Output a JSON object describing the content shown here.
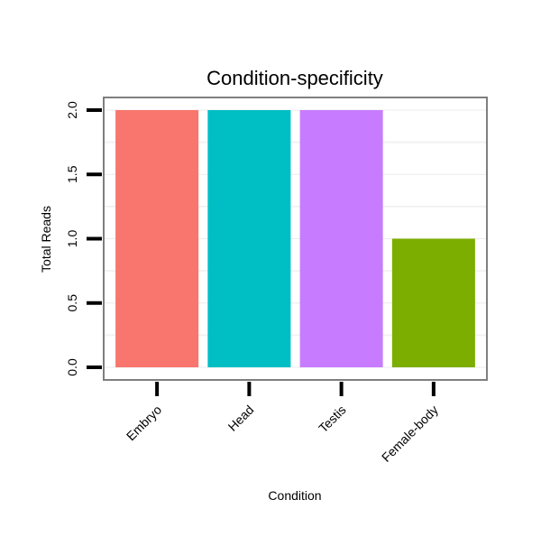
{
  "chart_data": {
    "type": "bar",
    "title": "Condition-specificity",
    "xlabel": "Condition",
    "ylabel": "Total Reads",
    "categories": [
      "Embryo",
      "Head",
      "Testis",
      "Female-body"
    ],
    "values": [
      2,
      2,
      2,
      1
    ],
    "colors": [
      "#F8766D",
      "#00BFC4",
      "#C77CFF",
      "#7CAE00"
    ],
    "ylim": [
      0,
      2.1
    ],
    "yticks": [
      0,
      0.5,
      1,
      1.5,
      2
    ],
    "ytick_labels": [
      "0.0",
      "0.5",
      "1.0",
      "1.5",
      "2.0"
    ],
    "grid": true,
    "legend": "none"
  }
}
